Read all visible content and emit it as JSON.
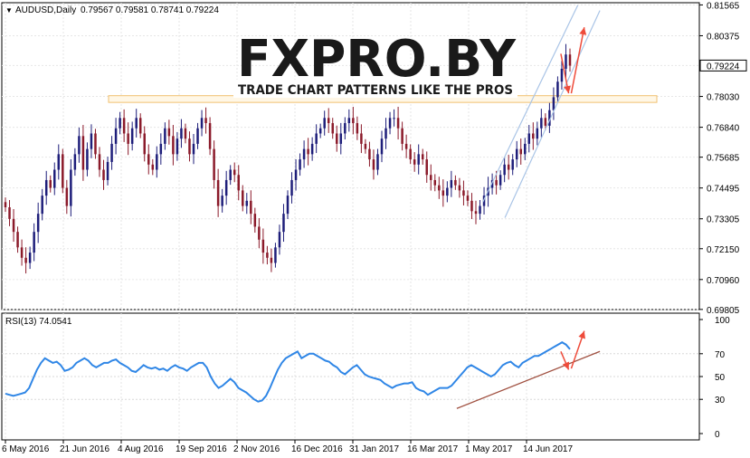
{
  "header": {
    "symbol_text": "AUDUSD,Daily",
    "ohlc_text": "0.79567 0.79581 0.78741 0.79224"
  },
  "logo": {
    "brand": "FXPRO.BY",
    "tagline": "TRADE CHART PATTERNS LIKE THE PROS"
  },
  "rsi_label": "RSI(13) 74.0541",
  "colors": {
    "candle_up": "#1e1e7a",
    "candle_down": "#8b1a2a",
    "rsi_line": "#2f86e6",
    "channel_line": "#a9c4e6",
    "arrow": "#ee4b3a",
    "trend_line": "#a05040",
    "zone_fill": "#fff7e6",
    "zone_border": "#f0c070",
    "grid": "#e6e6e6",
    "current_price_bg": "#ffffff"
  },
  "chart_data": [
    {
      "type": "candlestick",
      "title": "AUDUSD,Daily",
      "ylim": [
        0.698,
        0.8165
      ],
      "y_ticks": [
        "0.81565",
        "0.80375",
        "0.79224",
        "0.78030",
        "0.76840",
        "0.75685",
        "0.74495",
        "0.73305",
        "0.72150",
        "0.70960",
        "0.69805"
      ],
      "y_tick_values": [
        0.81565,
        0.80375,
        0.79224,
        0.7803,
        0.7684,
        0.75685,
        0.74495,
        0.73305,
        0.7215,
        0.7096,
        0.69805
      ],
      "current_price": "0.79224",
      "x_ticks": [
        "6 May 2016",
        "21 Jun 2016",
        "4 Aug 2016",
        "19 Sep 2016",
        "2 Nov 2016",
        "16 Dec 2016",
        "31 Jan 2017",
        "16 Mar 2017",
        "1 May 2017",
        "14 Jun 2017"
      ],
      "x_range": [
        "2016-05-06",
        "2017-07-14"
      ],
      "closes": [
        0.7375,
        0.733,
        0.728,
        0.722,
        0.718,
        0.716,
        0.72,
        0.728,
        0.735,
        0.742,
        0.748,
        0.745,
        0.752,
        0.758,
        0.745,
        0.738,
        0.752,
        0.758,
        0.765,
        0.752,
        0.76,
        0.766,
        0.758,
        0.752,
        0.748,
        0.755,
        0.762,
        0.768,
        0.772,
        0.766,
        0.762,
        0.768,
        0.772,
        0.766,
        0.758,
        0.754,
        0.752,
        0.758,
        0.762,
        0.768,
        0.765,
        0.758,
        0.764,
        0.768,
        0.764,
        0.758,
        0.762,
        0.768,
        0.772,
        0.77,
        0.76,
        0.748,
        0.738,
        0.742,
        0.748,
        0.752,
        0.75,
        0.744,
        0.738,
        0.74,
        0.735,
        0.73,
        0.725,
        0.72,
        0.718,
        0.716,
        0.722,
        0.728,
        0.735,
        0.742,
        0.748,
        0.752,
        0.756,
        0.76,
        0.758,
        0.762,
        0.766,
        0.768,
        0.772,
        0.77,
        0.766,
        0.762,
        0.766,
        0.77,
        0.772,
        0.77,
        0.766,
        0.762,
        0.76,
        0.756,
        0.752,
        0.758,
        0.764,
        0.768,
        0.772,
        0.772,
        0.768,
        0.762,
        0.76,
        0.756,
        0.754,
        0.758,
        0.756,
        0.75,
        0.748,
        0.746,
        0.744,
        0.742,
        0.745,
        0.748,
        0.746,
        0.744,
        0.742,
        0.74,
        0.736,
        0.735,
        0.738,
        0.742,
        0.745,
        0.748,
        0.746,
        0.75,
        0.754,
        0.752,
        0.756,
        0.76,
        0.758,
        0.762,
        0.766,
        0.764,
        0.768,
        0.772,
        0.769,
        0.775,
        0.78,
        0.786,
        0.791,
        0.7965,
        0.7922
      ],
      "channel": {
        "upper": [
          [
            "2017-05-08",
            0.7395
          ],
          [
            "2017-07-20",
            0.8155
          ]
        ],
        "lower": [
          [
            "2017-05-25",
            0.7335
          ],
          [
            "2017-08-06",
            0.8135
          ]
        ]
      },
      "resistance_zone": [
        0.778,
        0.7806
      ],
      "arrows": [
        {
          "from": [
            "2017-07-07",
            0.7968
          ],
          "to": [
            "2017-07-13",
            0.7815
          ]
        },
        {
          "from": [
            "2017-07-15",
            0.7815
          ],
          "to": [
            "2017-07-25",
            0.807
          ]
        }
      ]
    },
    {
      "type": "line",
      "title": "RSI(13) 74.0541",
      "ylim": [
        0,
        100
      ],
      "y_ticks": [
        "100",
        "70",
        "50",
        "30",
        "0"
      ],
      "y_tick_values": [
        100,
        70,
        50,
        30,
        0
      ],
      "values": [
        35,
        34,
        33,
        34,
        35,
        36,
        40,
        48,
        56,
        62,
        66,
        64,
        62,
        63,
        60,
        55,
        56,
        58,
        62,
        64,
        66,
        64,
        60,
        58,
        60,
        62,
        62,
        64,
        65,
        62,
        60,
        58,
        55,
        54,
        57,
        60,
        58,
        57,
        58,
        56,
        57,
        55,
        58,
        60,
        58,
        57,
        55,
        58,
        60,
        62,
        62,
        58,
        50,
        44,
        40,
        42,
        45,
        48,
        45,
        40,
        38,
        36,
        33,
        30,
        28,
        29,
        33,
        40,
        48,
        56,
        62,
        66,
        68,
        70,
        72,
        66,
        68,
        70,
        70,
        68,
        66,
        64,
        63,
        60,
        58,
        54,
        52,
        55,
        58,
        60,
        56,
        52,
        50,
        49,
        48,
        47,
        44,
        42,
        40,
        42,
        43,
        44,
        44,
        45,
        40,
        38,
        37,
        34,
        36,
        38,
        40,
        40,
        40,
        42,
        46,
        50,
        54,
        58,
        60,
        58,
        56,
        54,
        52,
        50,
        52,
        56,
        60,
        62,
        63,
        60,
        58,
        62,
        64,
        66,
        68,
        68,
        70,
        72,
        74,
        76,
        78,
        80,
        78,
        74
      ],
      "trend_line": [
        [
          "2017-04-18",
          22
        ],
        [
          "2017-08-06",
          72
        ]
      ],
      "arrows": [
        {
          "from": [
            "2017-07-07",
            72
          ],
          "to": [
            "2017-07-13",
            56
          ]
        },
        {
          "from": [
            "2017-07-15",
            57
          ],
          "to": [
            "2017-07-25",
            90
          ]
        }
      ]
    }
  ]
}
